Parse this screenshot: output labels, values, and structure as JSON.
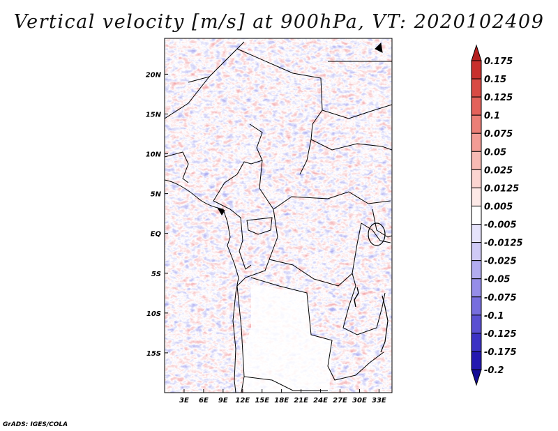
{
  "title": "Vertical velocity [m/s] at 900hPa, VT: 2020102409",
  "footer": "GrADS: IGES/COLA",
  "chart_data": {
    "type": "heatmap",
    "title": "Vertical velocity [m/s] at 900hPa, VT: 2020102409",
    "variable": "Vertical velocity",
    "units": "m/s",
    "level": "900hPa",
    "valid_time": "2020102409",
    "lon_range": [
      0,
      35
    ],
    "lat_range": [
      -20,
      24.5
    ],
    "x_ticks": [
      {
        "value": 3,
        "label": "3E"
      },
      {
        "value": 6,
        "label": "6E"
      },
      {
        "value": 9,
        "label": "9E"
      },
      {
        "value": 12,
        "label": "12E"
      },
      {
        "value": 15,
        "label": "15E"
      },
      {
        "value": 18,
        "label": "18E"
      },
      {
        "value": 21,
        "label": "21E"
      },
      {
        "value": 24,
        "label": "24E"
      },
      {
        "value": 27,
        "label": "27E"
      },
      {
        "value": 30,
        "label": "30E"
      },
      {
        "value": 33,
        "label": "33E"
      }
    ],
    "y_ticks": [
      {
        "value": 20,
        "label": "20N"
      },
      {
        "value": 15,
        "label": "15N"
      },
      {
        "value": 10,
        "label": "10N"
      },
      {
        "value": 5,
        "label": "5N"
      },
      {
        "value": 0,
        "label": "EQ"
      },
      {
        "value": -5,
        "label": "5S"
      },
      {
        "value": -10,
        "label": "10S"
      },
      {
        "value": -15,
        "label": "15S"
      }
    ],
    "colorbar": {
      "labels": [
        "0.175",
        "0.15",
        "0.125",
        "0.1",
        "0.075",
        "0.05",
        "0.025",
        "0.0125",
        "0.005",
        "-0.005",
        "-0.0125",
        "-0.025",
        "-0.05",
        "-0.075",
        "-0.1",
        "-0.125",
        "-0.175",
        "-0.2"
      ],
      "colors": [
        "#b41e1e",
        "#c8302d",
        "#d84a44",
        "#e3625b",
        "#eb7f77",
        "#f29c95",
        "#f7bab4",
        "#fbd5d1",
        "#fde9e7",
        "#ffffff",
        "#e6e3fb",
        "#cfcaf6",
        "#b2acf0",
        "#958de8",
        "#776ede",
        "#5a50d2",
        "#3c32c4",
        "#2418b0",
        "#140c96"
      ]
    }
  }
}
